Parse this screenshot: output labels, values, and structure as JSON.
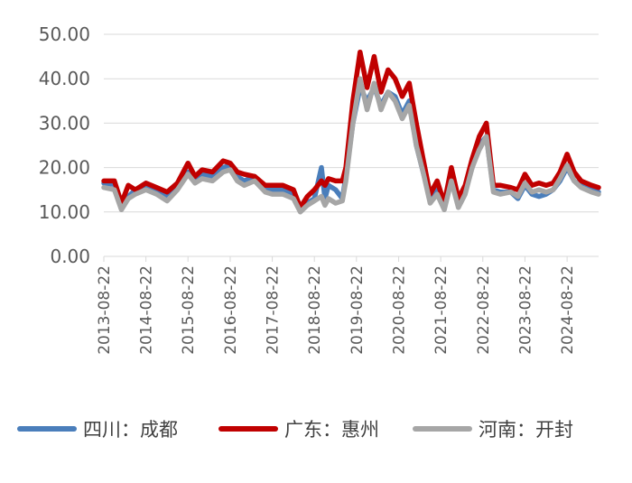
{
  "chart_data": {
    "type": "line",
    "title": "",
    "xlabel": "",
    "ylabel": "",
    "ylim": [
      0,
      50
    ],
    "y_ticks": [
      "0.00",
      "10.00",
      "20.00",
      "30.00",
      "40.00",
      "50.00"
    ],
    "x_ticks": [
      "2013-08-22",
      "2014-08-22",
      "2015-08-22",
      "2016-08-22",
      "2017-08-22",
      "2018-08-22",
      "2019-08-22",
      "2020-08-22",
      "2021-08-22",
      "2022-08-22",
      "2023-08-22",
      "2024-08-22"
    ],
    "x_range": [
      "2013-08-22",
      "2025-05-22"
    ],
    "grid": "horizontal",
    "legend_position": "bottom",
    "series": [
      {
        "name": "四川：成都",
        "color": "#4a7ebb",
        "points": [
          [
            "2013-08-22",
            16.5
          ],
          [
            "2013-11-22",
            16.2
          ],
          [
            "2014-01-22",
            11.5
          ],
          [
            "2014-03-22",
            13.5
          ],
          [
            "2014-05-22",
            15.0
          ],
          [
            "2014-08-22",
            15.5
          ],
          [
            "2014-11-22",
            14.8
          ],
          [
            "2015-02-22",
            13.5
          ],
          [
            "2015-05-22",
            15.5
          ],
          [
            "2015-08-22",
            19.0
          ],
          [
            "2015-10-22",
            17.0
          ],
          [
            "2015-12-22",
            18.5
          ],
          [
            "2016-03-22",
            18.0
          ],
          [
            "2016-06-22",
            20.0
          ],
          [
            "2016-08-22",
            20.5
          ],
          [
            "2016-10-22",
            18.0
          ],
          [
            "2016-12-22",
            17.0
          ],
          [
            "2017-03-22",
            18.0
          ],
          [
            "2017-06-22",
            15.5
          ],
          [
            "2017-08-22",
            15.0
          ],
          [
            "2017-11-22",
            15.0
          ],
          [
            "2018-02-22",
            14.0
          ],
          [
            "2018-04-22",
            11.0
          ],
          [
            "2018-06-22",
            12.0
          ],
          [
            "2018-08-22",
            13.0
          ],
          [
            "2018-10-22",
            20.0
          ],
          [
            "2018-11-22",
            13.0
          ],
          [
            "2018-12-22",
            16.0
          ],
          [
            "2019-02-22",
            15.0
          ],
          [
            "2019-04-22",
            13.0
          ],
          [
            "2019-05-22",
            18.0
          ],
          [
            "2019-07-22",
            30.0
          ],
          [
            "2019-09-22",
            38.0
          ],
          [
            "2019-11-22",
            35.0
          ],
          [
            "2020-01-22",
            38.0
          ],
          [
            "2020-03-22",
            34.0
          ],
          [
            "2020-05-22",
            37.0
          ],
          [
            "2020-07-22",
            36.0
          ],
          [
            "2020-09-22",
            32.0
          ],
          [
            "2020-11-22",
            35.0
          ],
          [
            "2021-01-22",
            25.0
          ],
          [
            "2021-03-22",
            19.0
          ],
          [
            "2021-05-22",
            13.0
          ],
          [
            "2021-07-22",
            15.0
          ],
          [
            "2021-09-22",
            11.5
          ],
          [
            "2021-11-22",
            17.0
          ],
          [
            "2022-01-22",
            12.0
          ],
          [
            "2022-03-22",
            15.0
          ],
          [
            "2022-05-22",
            20.0
          ],
          [
            "2022-07-22",
            25.0
          ],
          [
            "2022-09-22",
            27.0
          ],
          [
            "2022-11-22",
            15.0
          ],
          [
            "2023-01-22",
            14.5
          ],
          [
            "2023-04-22",
            14.5
          ],
          [
            "2023-06-22",
            13.0
          ],
          [
            "2023-08-22",
            16.0
          ],
          [
            "2023-10-22",
            14.0
          ],
          [
            "2023-12-22",
            13.5
          ],
          [
            "2024-02-22",
            14.0
          ],
          [
            "2024-04-22",
            15.0
          ],
          [
            "2024-06-22",
            17.0
          ],
          [
            "2024-08-22",
            20.0
          ],
          [
            "2024-10-22",
            17.0
          ],
          [
            "2024-12-22",
            16.0
          ],
          [
            "2025-03-22",
            15.0
          ],
          [
            "2025-05-22",
            14.5
          ]
        ]
      },
      {
        "name": "广东：惠州",
        "color": "#c00000",
        "points": [
          [
            "2013-08-22",
            17.0
          ],
          [
            "2013-11-22",
            17.0
          ],
          [
            "2014-01-22",
            12.0
          ],
          [
            "2014-03-22",
            16.0
          ],
          [
            "2014-05-22",
            15.0
          ],
          [
            "2014-08-22",
            16.5
          ],
          [
            "2014-11-22",
            15.5
          ],
          [
            "2015-02-22",
            14.5
          ],
          [
            "2015-05-22",
            16.5
          ],
          [
            "2015-08-22",
            21.0
          ],
          [
            "2015-10-22",
            18.0
          ],
          [
            "2015-12-22",
            19.5
          ],
          [
            "2016-03-22",
            19.0
          ],
          [
            "2016-06-22",
            21.5
          ],
          [
            "2016-08-22",
            21.0
          ],
          [
            "2016-10-22",
            19.0
          ],
          [
            "2016-12-22",
            18.5
          ],
          [
            "2017-03-22",
            18.0
          ],
          [
            "2017-06-22",
            16.0
          ],
          [
            "2017-08-22",
            16.0
          ],
          [
            "2017-11-22",
            16.0
          ],
          [
            "2018-02-22",
            15.0
          ],
          [
            "2018-04-22",
            11.0
          ],
          [
            "2018-06-22",
            13.5
          ],
          [
            "2018-08-22",
            15.0
          ],
          [
            "2018-10-22",
            17.0
          ],
          [
            "2018-11-22",
            16.0
          ],
          [
            "2018-12-22",
            17.5
          ],
          [
            "2019-02-22",
            17.0
          ],
          [
            "2019-04-22",
            17.0
          ],
          [
            "2019-05-22",
            20.0
          ],
          [
            "2019-07-22",
            35.0
          ],
          [
            "2019-09-22",
            46.0
          ],
          [
            "2019-11-22",
            38.0
          ],
          [
            "2020-01-22",
            45.0
          ],
          [
            "2020-03-22",
            37.0
          ],
          [
            "2020-05-22",
            42.0
          ],
          [
            "2020-07-22",
            40.0
          ],
          [
            "2020-09-22",
            36.0
          ],
          [
            "2020-11-22",
            39.0
          ],
          [
            "2021-01-22",
            30.0
          ],
          [
            "2021-03-22",
            22.0
          ],
          [
            "2021-05-22",
            14.0
          ],
          [
            "2021-07-22",
            17.0
          ],
          [
            "2021-09-22",
            12.0
          ],
          [
            "2021-11-22",
            20.0
          ],
          [
            "2022-01-22",
            13.0
          ],
          [
            "2022-03-22",
            16.0
          ],
          [
            "2022-05-22",
            22.0
          ],
          [
            "2022-07-22",
            27.0
          ],
          [
            "2022-09-22",
            30.0
          ],
          [
            "2022-11-22",
            16.0
          ],
          [
            "2023-01-22",
            16.0
          ],
          [
            "2023-04-22",
            15.5
          ],
          [
            "2023-06-22",
            15.0
          ],
          [
            "2023-08-22",
            18.5
          ],
          [
            "2023-10-22",
            16.0
          ],
          [
            "2023-12-22",
            16.5
          ],
          [
            "2024-02-22",
            16.0
          ],
          [
            "2024-04-22",
            16.5
          ],
          [
            "2024-06-22",
            19.0
          ],
          [
            "2024-08-22",
            23.0
          ],
          [
            "2024-10-22",
            19.0
          ],
          [
            "2024-12-22",
            17.0
          ],
          [
            "2025-03-22",
            16.0
          ],
          [
            "2025-05-22",
            15.5
          ]
        ]
      },
      {
        "name": "河南：开封",
        "color": "#a6a6a6",
        "points": [
          [
            "2013-08-22",
            15.5
          ],
          [
            "2013-11-22",
            15.0
          ],
          [
            "2014-01-22",
            10.5
          ],
          [
            "2014-03-22",
            13.0
          ],
          [
            "2014-05-22",
            14.0
          ],
          [
            "2014-08-22",
            15.0
          ],
          [
            "2014-11-22",
            14.0
          ],
          [
            "2015-02-22",
            12.5
          ],
          [
            "2015-05-22",
            15.0
          ],
          [
            "2015-08-22",
            18.5
          ],
          [
            "2015-10-22",
            16.5
          ],
          [
            "2015-12-22",
            17.5
          ],
          [
            "2016-03-22",
            17.0
          ],
          [
            "2016-06-22",
            19.0
          ],
          [
            "2016-08-22",
            19.5
          ],
          [
            "2016-10-22",
            17.0
          ],
          [
            "2016-12-22",
            16.0
          ],
          [
            "2017-03-22",
            17.0
          ],
          [
            "2017-06-22",
            14.5
          ],
          [
            "2017-08-22",
            14.0
          ],
          [
            "2017-11-22",
            14.0
          ],
          [
            "2018-02-22",
            13.0
          ],
          [
            "2018-04-22",
            10.0
          ],
          [
            "2018-06-22",
            11.5
          ],
          [
            "2018-08-22",
            12.5
          ],
          [
            "2018-10-22",
            13.5
          ],
          [
            "2018-11-22",
            11.5
          ],
          [
            "2018-12-22",
            13.0
          ],
          [
            "2019-02-22",
            12.0
          ],
          [
            "2019-04-22",
            12.5
          ],
          [
            "2019-05-22",
            17.0
          ],
          [
            "2019-07-22",
            30.0
          ],
          [
            "2019-09-22",
            40.0
          ],
          [
            "2019-11-22",
            33.0
          ],
          [
            "2020-01-22",
            39.0
          ],
          [
            "2020-03-22",
            33.0
          ],
          [
            "2020-05-22",
            37.0
          ],
          [
            "2020-07-22",
            35.0
          ],
          [
            "2020-09-22",
            31.0
          ],
          [
            "2020-11-22",
            34.0
          ],
          [
            "2021-01-22",
            25.0
          ],
          [
            "2021-03-22",
            19.0
          ],
          [
            "2021-05-22",
            12.0
          ],
          [
            "2021-07-22",
            14.0
          ],
          [
            "2021-09-22",
            10.5
          ],
          [
            "2021-11-22",
            17.0
          ],
          [
            "2022-01-22",
            11.0
          ],
          [
            "2022-03-22",
            14.0
          ],
          [
            "2022-05-22",
            20.0
          ],
          [
            "2022-07-22",
            24.0
          ],
          [
            "2022-09-22",
            27.0
          ],
          [
            "2022-11-22",
            14.5
          ],
          [
            "2023-01-22",
            14.0
          ],
          [
            "2023-04-22",
            14.5
          ],
          [
            "2023-06-22",
            13.5
          ],
          [
            "2023-08-22",
            16.5
          ],
          [
            "2023-10-22",
            14.5
          ],
          [
            "2023-12-22",
            15.0
          ],
          [
            "2024-02-22",
            14.5
          ],
          [
            "2024-04-22",
            15.0
          ],
          [
            "2024-06-22",
            17.5
          ],
          [
            "2024-08-22",
            20.5
          ],
          [
            "2024-10-22",
            17.0
          ],
          [
            "2024-12-22",
            15.5
          ],
          [
            "2025-03-22",
            14.5
          ],
          [
            "2025-05-22",
            14.0
          ]
        ]
      }
    ]
  }
}
